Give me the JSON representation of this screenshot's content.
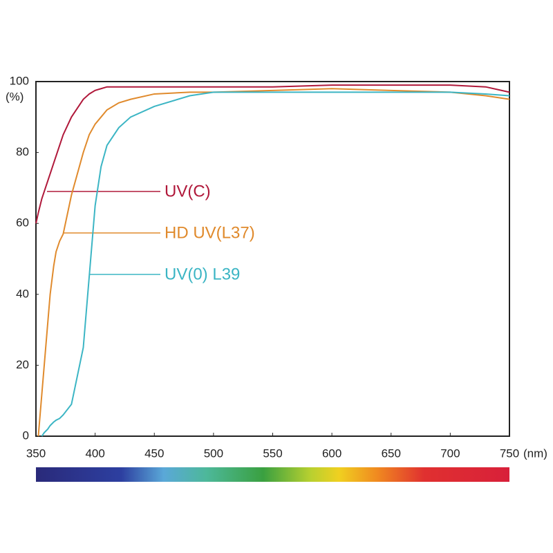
{
  "chart_data": {
    "type": "line",
    "x_label": "(nm)",
    "y_label": "(%)",
    "x": [
      350,
      352,
      355,
      357,
      360,
      362,
      365,
      367,
      370,
      373,
      380,
      390,
      395,
      400,
      405,
      410,
      420,
      430,
      450,
      480,
      500,
      550,
      600,
      650,
      700,
      730,
      750
    ],
    "series": [
      {
        "name": "UV(C)",
        "color": "#b0183a",
        "values": [
          60,
          63,
          67,
          69,
          72,
          74,
          77,
          79,
          82,
          85,
          90,
          95,
          96.5,
          97.5,
          98,
          98.5,
          98.5,
          98.5,
          98.5,
          98.5,
          98.5,
          98.5,
          99,
          99,
          99,
          98.5,
          97
        ]
      },
      {
        "name": "HD UV(L37)",
        "color": "#e08a2c",
        "values": [
          null,
          0,
          12,
          20,
          32,
          40,
          48,
          52,
          55,
          57,
          68,
          80,
          85,
          88,
          90,
          92,
          94,
          95,
          96.5,
          97,
          97,
          97.5,
          98,
          97.5,
          97,
          96,
          95
        ]
      },
      {
        "name": "UV(0) L39",
        "color": "#3bb5c4",
        "values": [
          null,
          null,
          0,
          1,
          2,
          3,
          4,
          4.5,
          5,
          6,
          9,
          25,
          45,
          65,
          76,
          82,
          87,
          90,
          93,
          96,
          97,
          97,
          97,
          97,
          97,
          96.5,
          96
        ]
      }
    ],
    "xlim": [
      350,
      750
    ],
    "ylim": [
      0,
      100
    ],
    "xticks": [
      350,
      400,
      450,
      500,
      550,
      600,
      650,
      700,
      750
    ],
    "yticks": [
      0,
      20,
      40,
      60,
      80,
      100
    ]
  }
}
